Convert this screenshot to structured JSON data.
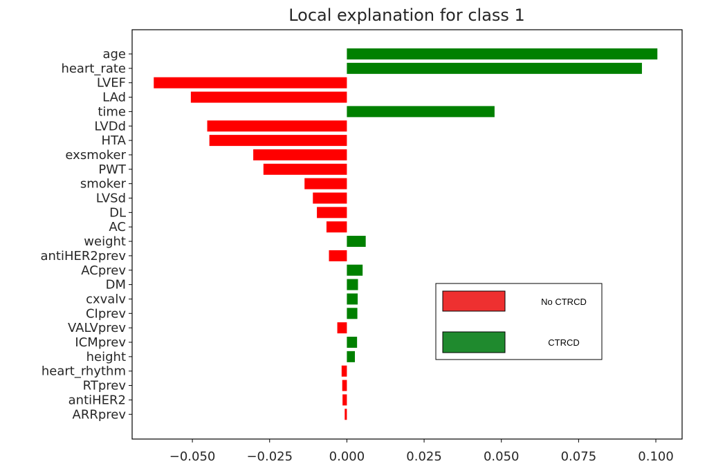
{
  "chart_data": {
    "type": "bar",
    "orientation": "horizontal",
    "title": "Local explanation for class 1",
    "xlabel": "",
    "ylabel": "",
    "xlim": [
      -0.0695,
      0.1085
    ],
    "x_ticks": [
      -0.05,
      -0.025,
      0.0,
      0.025,
      0.05,
      0.075,
      0.1
    ],
    "x_tick_labels": [
      "−0.050",
      "−0.025",
      "0.000",
      "0.025",
      "0.050",
      "0.075",
      "0.100"
    ],
    "categories": [
      "age",
      "heart_rate",
      "LVEF",
      "LAd",
      "time",
      "LVDd",
      "HTA",
      "exsmoker",
      "PWT",
      "smoker",
      "LVSd",
      "DL",
      "AC",
      "weight",
      "antiHER2prev",
      "ACprev",
      "DM",
      "cxvalv",
      "CIprev",
      "VALVprev",
      "ICMprev",
      "height",
      "heart_rhythm",
      "RTprev",
      "antiHER2",
      "ARRprev"
    ],
    "values": [
      0.1005,
      0.0955,
      -0.0625,
      -0.0505,
      0.0478,
      -0.0452,
      -0.0445,
      -0.0303,
      -0.027,
      -0.0137,
      -0.011,
      -0.0097,
      -0.0066,
      0.0061,
      -0.0058,
      0.0051,
      0.0036,
      0.0035,
      0.0034,
      -0.0031,
      0.0033,
      0.0026,
      -0.0017,
      -0.0015,
      -0.0014,
      -0.0007
    ],
    "grid": false,
    "colors": {
      "positive": "#008000",
      "negative": "#ff0000"
    },
    "legend": {
      "position": "center-right",
      "entries": [
        {
          "label": "No CTRCD",
          "color": "#ee3030"
        },
        {
          "label": "CTRCD",
          "color": "#1f8a2e"
        }
      ]
    }
  }
}
